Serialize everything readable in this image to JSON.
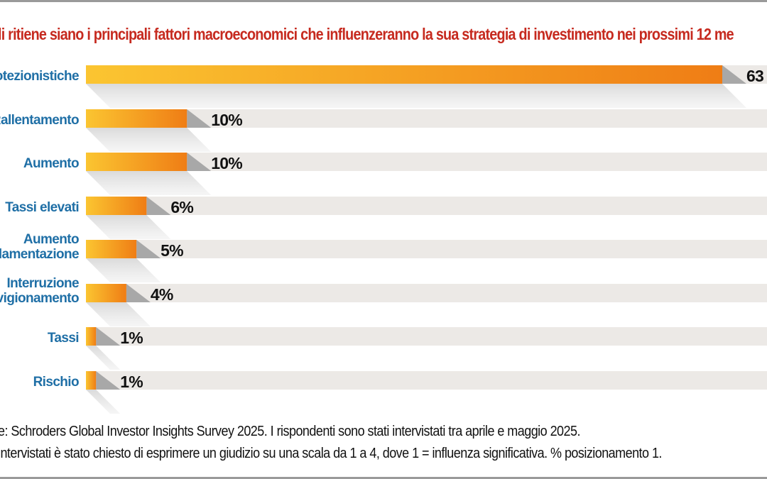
{
  "header": {
    "title": "li ritiene siano i principali fattori macroeconomici che influenzeranno la sua strategia di investimento nei prossimi 12 me"
  },
  "colors": {
    "title": "#c62a1f",
    "category_label": "#1f6fa6",
    "bar_start": "#fbc531",
    "bar_end": "#ef7d15",
    "track": "#ece9e6",
    "value_label": "#111111"
  },
  "chart_data": {
    "type": "bar",
    "orientation": "horizontal",
    "categories": [
      [
        "protezionistiche"
      ],
      [
        "Rallentamento"
      ],
      [
        "Aumento"
      ],
      [
        "Tassi elevati"
      ],
      [
        "Aumento",
        "golamentazione"
      ],
      [
        "Interruzione",
        "vvigionamento"
      ],
      [
        "Tassi"
      ],
      [
        "Rischio"
      ]
    ],
    "values": [
      63,
      10,
      10,
      6,
      5,
      4,
      1,
      1
    ],
    "value_labels": [
      "63",
      "10%",
      "10%",
      "6%",
      "5%",
      "4%",
      "1%",
      "1%"
    ],
    "xlim": [
      0,
      63
    ],
    "unit": "%",
    "grid": false,
    "legend": "none"
  },
  "footer": {
    "source_line": "e: Schroders Global Investor Insights Survey 2025. I rispondenti sono stati intervistati tra aprile e maggio 2025.",
    "note_line": "intervistati è stato chiesto di esprimere un giudizio su una scala da 1 a 4, dove 1 = influenza significativa. % posizionamento 1."
  }
}
